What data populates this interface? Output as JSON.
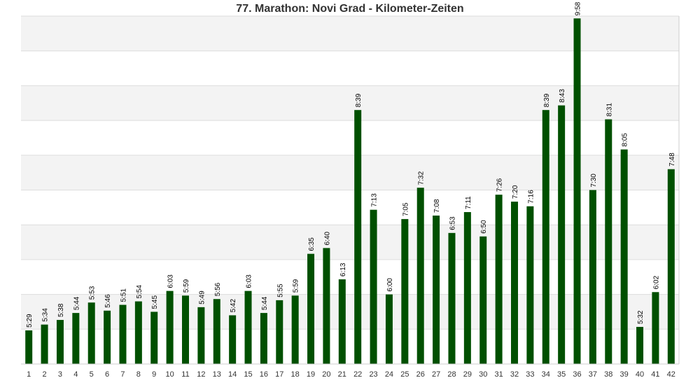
{
  "chart_data": {
    "type": "bar",
    "title": "77. Marathon: Novi Grad - Kilometer-Zeiten",
    "xlabel": "",
    "ylabel": "",
    "categories": [
      "1",
      "2",
      "3",
      "4",
      "5",
      "6",
      "7",
      "8",
      "9",
      "10",
      "11",
      "12",
      "13",
      "14",
      "15",
      "16",
      "17",
      "18",
      "19",
      "20",
      "21",
      "22",
      "23",
      "24",
      "25",
      "26",
      "27",
      "28",
      "29",
      "30",
      "31",
      "32",
      "33",
      "34",
      "35",
      "36",
      "37",
      "38",
      "39",
      "40",
      "41",
      "42"
    ],
    "values": [
      329,
      334,
      338,
      344,
      353,
      346,
      351,
      354,
      345,
      363,
      359,
      349,
      356,
      342,
      363,
      344,
      355,
      359,
      395,
      400,
      373,
      519,
      433,
      360,
      425,
      452,
      428,
      413,
      431,
      410,
      446,
      440,
      436,
      519,
      523,
      598,
      450,
      511,
      485,
      332,
      362,
      468
    ],
    "data_labels": [
      "5:29",
      "5:34",
      "5:38",
      "5:44",
      "5:53",
      "5:46",
      "5:51",
      "5:54",
      "5:45",
      "6:03",
      "5:59",
      "5:49",
      "5:56",
      "5:42",
      "6:03",
      "5:44",
      "5:55",
      "5:59",
      "6:35",
      "6:40",
      "6:13",
      "8:39",
      "7:13",
      "6:00",
      "7:05",
      "7:32",
      "7:08",
      "6:53",
      "7:11",
      "6:50",
      "7:26",
      "7:20",
      "7:16",
      "8:39",
      "8:43",
      "9:58",
      "7:30",
      "8:31",
      "8:05",
      "5:32",
      "6:02",
      "7:48"
    ],
    "value_unit": "seconds",
    "ylim": [
      300,
      600
    ],
    "grid": true,
    "legend": "none",
    "colors": {
      "bar": "#005000",
      "band": "#f3f3f3",
      "gridline": "#dddddd",
      "frame": "#cccccc"
    }
  }
}
